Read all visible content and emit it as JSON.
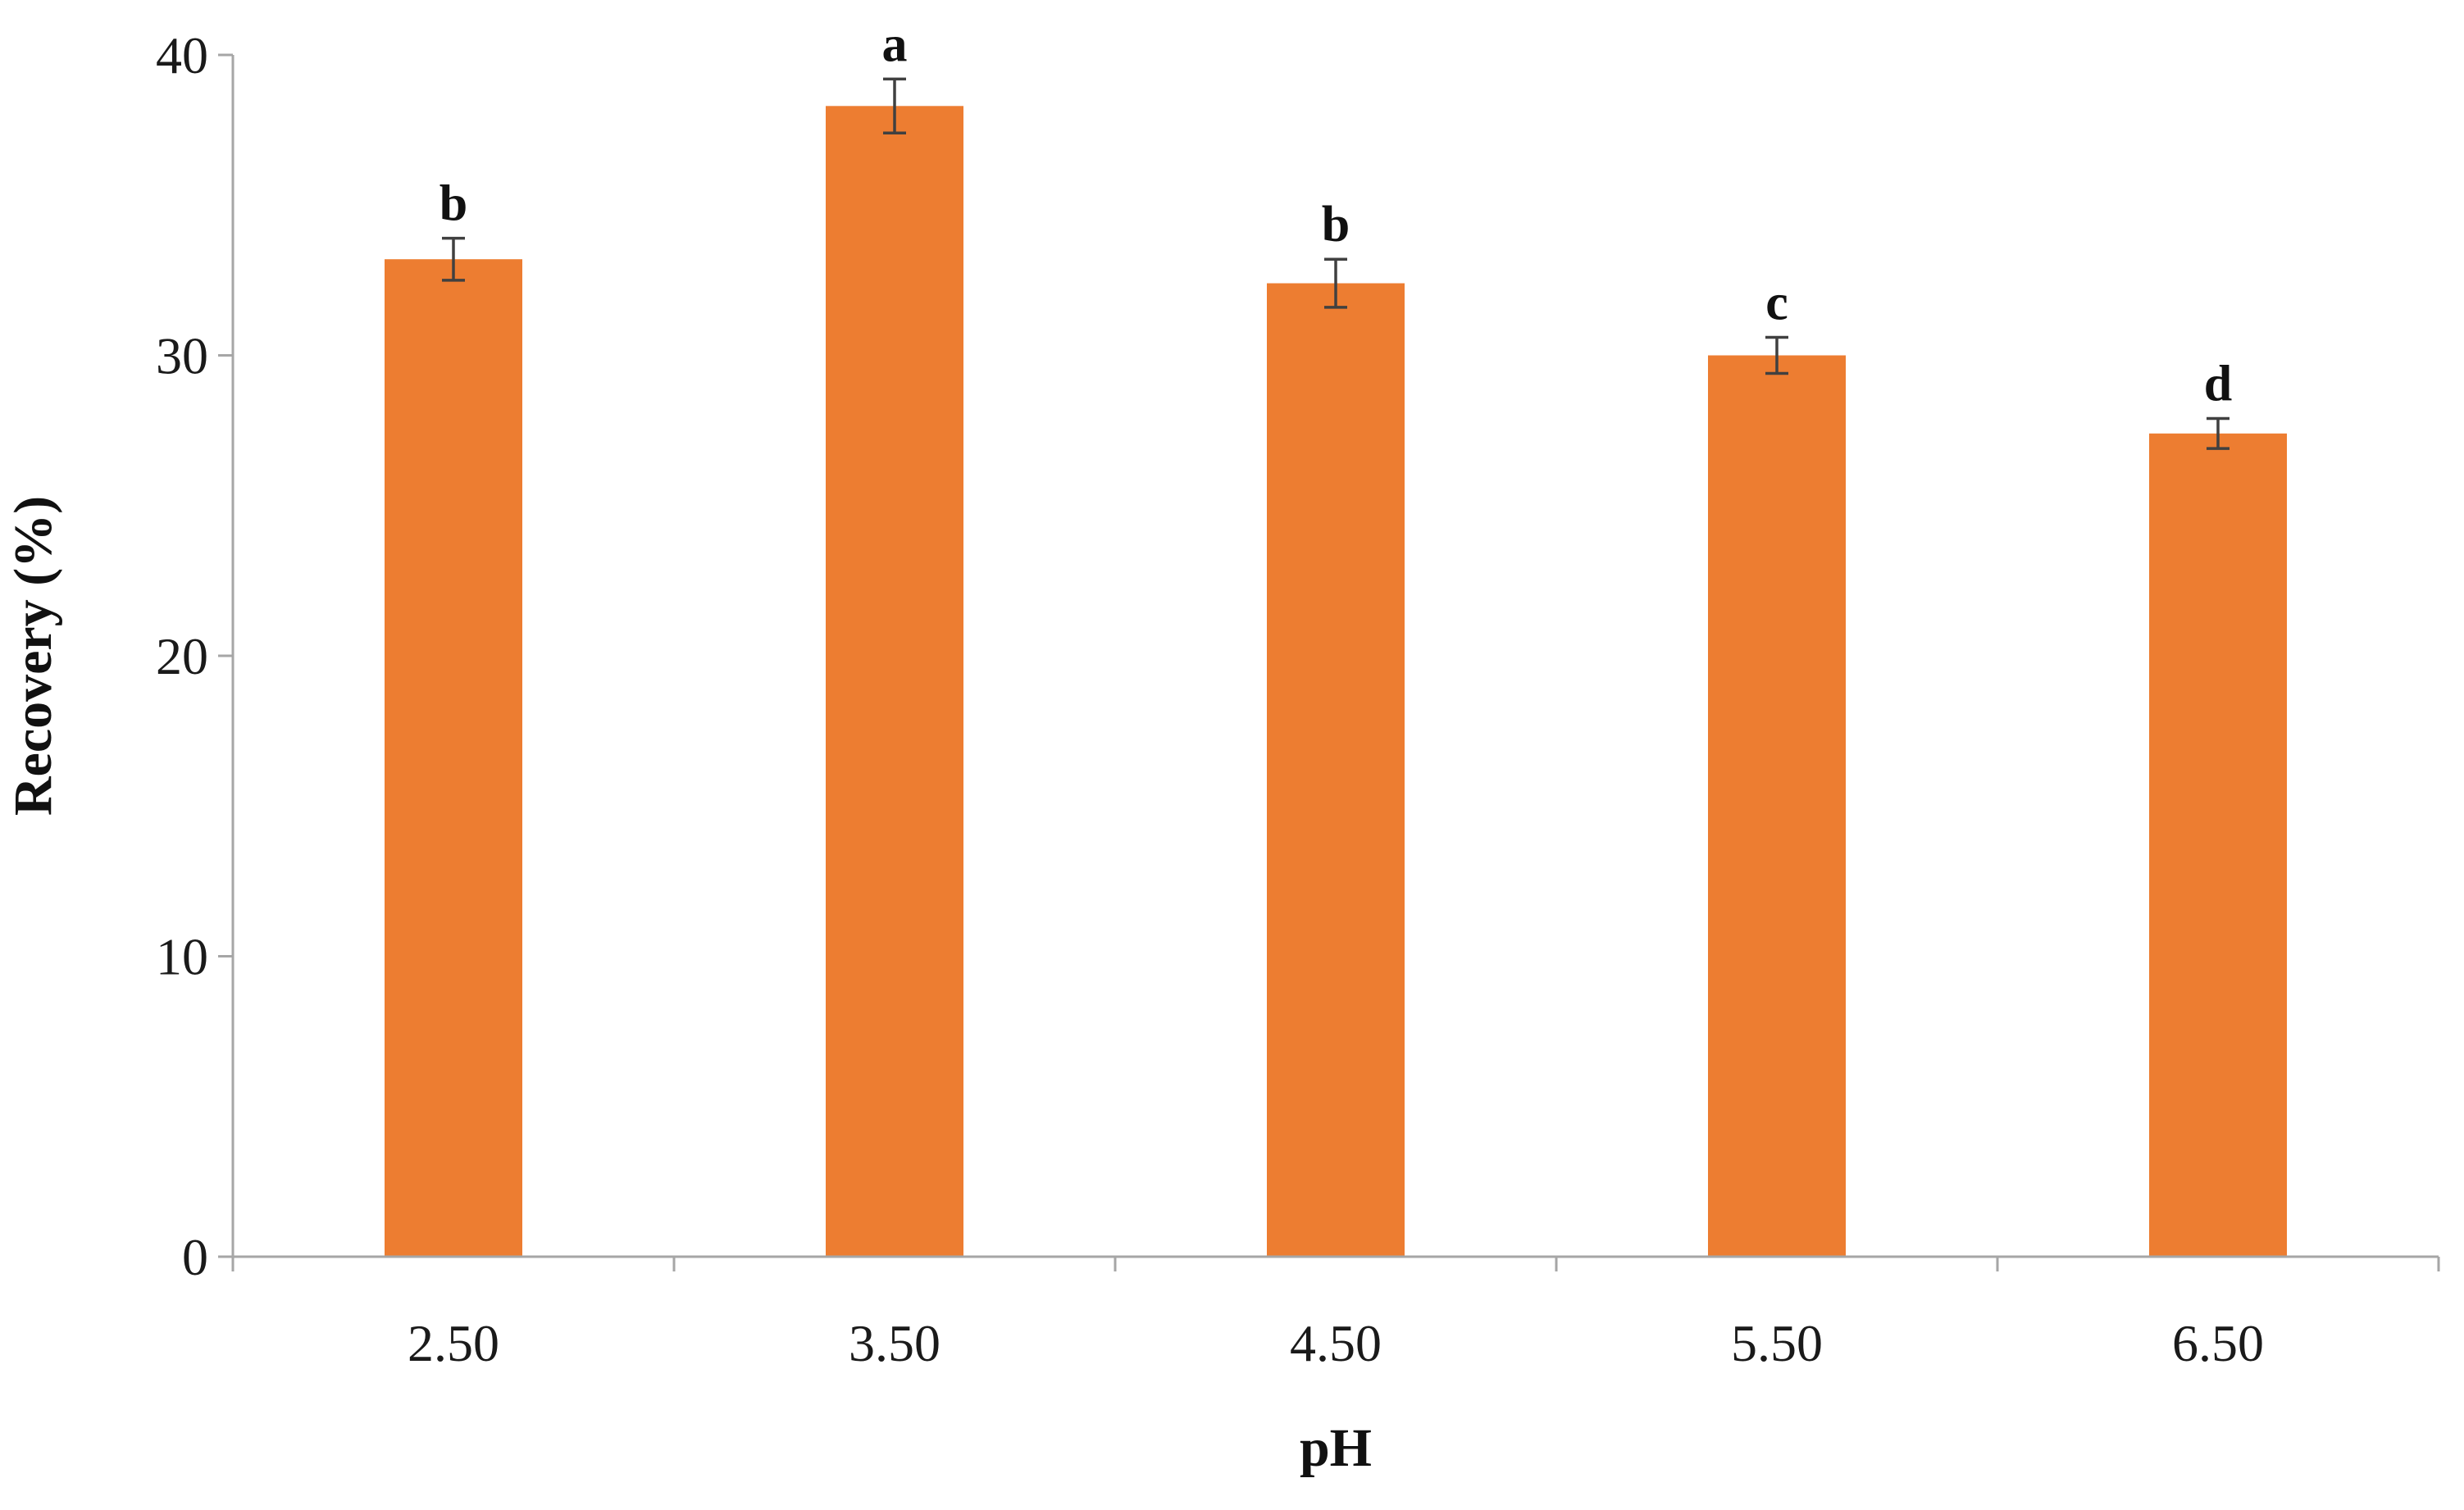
{
  "chart_data": {
    "type": "bar",
    "categories": [
      "2.50",
      "3.50",
      "4.50",
      "5.50",
      "6.50"
    ],
    "series": [
      {
        "values": [
          33.2,
          38.3,
          32.4,
          30.0,
          27.4
        ],
        "errors": [
          0.7,
          0.9,
          0.8,
          0.6,
          0.5
        ],
        "labels": [
          "b",
          "a",
          "b",
          "c",
          "d"
        ],
        "color": "#ED7D31"
      }
    ],
    "xlabel": "pH",
    "ylabel": "Recovery (%)",
    "ylim": [
      0,
      40
    ],
    "yticks": [
      "0",
      "10",
      "20",
      "30",
      "40"
    ],
    "grid": false,
    "legend": "none"
  },
  "colors": {
    "bar": "#ED7D31",
    "axis": "#a6a6a6",
    "error_bar": "#404040",
    "text": "#111111"
  }
}
